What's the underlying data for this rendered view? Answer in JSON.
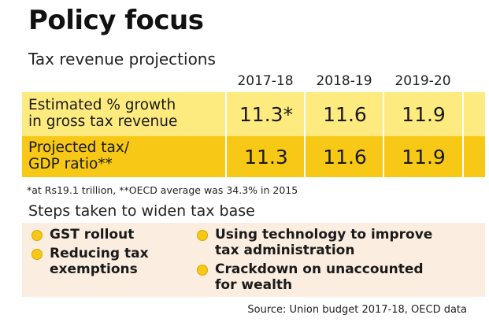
{
  "title": "Policy focus",
  "subtitle": "Tax revenue projections",
  "chart_data": {
    "type": "table",
    "columns": [
      "2017-18",
      "2018-19",
      "2019-20"
    ],
    "rows": [
      {
        "label_line1": "Estimated % growth",
        "label_line2": "in gross tax revenue",
        "cells": [
          "11.3*",
          "11.6",
          "11.9"
        ],
        "values": [
          11.3,
          11.6,
          11.9
        ],
        "color": "#fdeb80"
      },
      {
        "label_line1": "Projected tax/",
        "label_line2": "GDP ratio**",
        "cells": [
          "11.3",
          "11.6",
          "11.9"
        ],
        "values": [
          11.3,
          11.6,
          11.9
        ],
        "color": "#f7c815"
      }
    ]
  },
  "footnote": "*at Rs19.1 trillion, **OECD average was 34.3% in 2015",
  "steps": {
    "title": "Steps taken to widen tax base",
    "left": [
      {
        "line1": "GST rollout",
        "line2": ""
      },
      {
        "line1": "Reducing tax",
        "line2": "exemptions"
      }
    ],
    "right": [
      {
        "line1": "Using technology to improve",
        "line2": "tax administration"
      },
      {
        "line1": "Crackdown on unaccounted",
        "line2": "for wealth"
      }
    ]
  },
  "source": "Source: Union budget 2017-18, OECD data",
  "colors": {
    "accent": "#f7c815",
    "light_row": "#fdeb80",
    "steps_bg": "#fbeee0"
  }
}
